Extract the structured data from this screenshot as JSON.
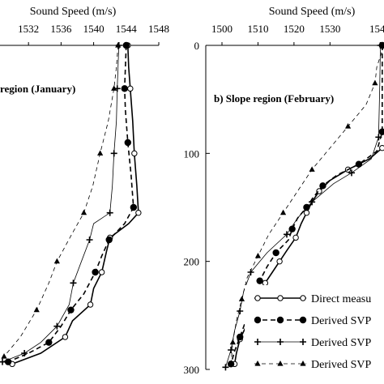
{
  "chart_data": [
    {
      "type": "line",
      "panel_label": "region (January)",
      "xlabel": "Sound Speed (m/s)",
      "x_ticks": [
        1532,
        1536,
        1540,
        1544,
        1548
      ],
      "xlim": [
        1528.5,
        1548
      ],
      "ylim": [
        0,
        300
      ],
      "series": [
        {
          "name": "Direct measurement",
          "style": "solid-open-circle",
          "points": [
            [
              1544.2,
              0
            ],
            [
              1544.3,
              20
            ],
            [
              1544.5,
              40
            ],
            [
              1544.8,
              70
            ],
            [
              1545.0,
              100
            ],
            [
              1545.3,
              130
            ],
            [
              1545.5,
              155
            ],
            [
              1544.3,
              165
            ],
            [
              1542.0,
              178
            ],
            [
              1541.6,
              190
            ],
            [
              1541.0,
              210
            ],
            [
              1540.0,
              225
            ],
            [
              1539.6,
              240
            ],
            [
              1537.4,
              255
            ],
            [
              1536.5,
              270
            ],
            [
              1533.5,
              285
            ],
            [
              1530.0,
              295
            ]
          ]
        },
        {
          "name": "Derived SVP",
          "style": "dash-filled-circle",
          "points": [
            [
              1544.0,
              0
            ],
            [
              1543.9,
              20
            ],
            [
              1543.8,
              40
            ],
            [
              1543.9,
              60
            ],
            [
              1544.2,
              90
            ],
            [
              1544.6,
              120
            ],
            [
              1544.9,
              150
            ],
            [
              1543.8,
              165
            ],
            [
              1541.9,
              180
            ],
            [
              1541.0,
              195
            ],
            [
              1540.2,
              210
            ],
            [
              1538.8,
              230
            ],
            [
              1537.2,
              245
            ],
            [
              1536.0,
              260
            ],
            [
              1534.5,
              275
            ],
            [
              1532.0,
              285
            ],
            [
              1529.5,
              293
            ]
          ]
        },
        {
          "name": "Derived SVP",
          "style": "thin-plus",
          "points": [
            [
              1543.1,
              0
            ],
            [
              1543.0,
              20
            ],
            [
              1542.9,
              40
            ],
            [
              1542.8,
              70
            ],
            [
              1542.5,
              100
            ],
            [
              1542.3,
              130
            ],
            [
              1542.0,
              155
            ],
            [
              1540.0,
              165
            ],
            [
              1539.5,
              180
            ],
            [
              1538.5,
              200
            ],
            [
              1537.5,
              220
            ],
            [
              1537.0,
              240
            ],
            [
              1535.5,
              260
            ],
            [
              1533.5,
              275
            ],
            [
              1531.5,
              285
            ],
            [
              1528.8,
              293
            ]
          ]
        },
        {
          "name": "Derived SVP",
          "style": "dash-triangle",
          "points": [
            [
              1543.0,
              0
            ],
            [
              1542.8,
              20
            ],
            [
              1542.5,
              40
            ],
            [
              1541.8,
              70
            ],
            [
              1540.8,
              100
            ],
            [
              1539.9,
              130
            ],
            [
              1538.8,
              155
            ],
            [
              1537.3,
              175
            ],
            [
              1535.5,
              200
            ],
            [
              1534.5,
              220
            ],
            [
              1533.0,
              245
            ],
            [
              1531.0,
              270
            ],
            [
              1529.0,
              288
            ]
          ]
        }
      ]
    },
    {
      "type": "line",
      "panel_label": "b) Slope region (February)",
      "xlabel": "Sound Speed (m/s)",
      "x_ticks": [
        1500,
        1510,
        1520,
        1530
      ],
      "x_tick_partial": "154",
      "ylabel_ticks": [
        0,
        100,
        200,
        300
      ],
      "xlim": [
        1495.5,
        1545
      ],
      "ylim": [
        0,
        300
      ],
      "series": [
        {
          "name": "Direct measurement",
          "style": "solid-open-circle",
          "points": [
            [
              1544.5,
              95
            ],
            [
              1541.0,
              105
            ],
            [
              1535.0,
              115
            ],
            [
              1530.0,
              125
            ],
            [
              1527.0,
              135
            ],
            [
              1525.0,
              145
            ],
            [
              1523.5,
              155
            ],
            [
              1522.0,
              165
            ],
            [
              1520.5,
              178
            ],
            [
              1518.0,
              190
            ],
            [
              1516.0,
              200
            ],
            [
              1514.0,
              210
            ],
            [
              1512.0,
              220
            ],
            [
              1510.5,
              232
            ],
            [
              1509.0,
              245
            ],
            [
              1507.0,
              258
            ],
            [
              1505.0,
              272
            ],
            [
              1504.0,
              285
            ],
            [
              1503.5,
              295
            ]
          ]
        },
        {
          "name": "Derived SVP",
          "style": "dash-filled-circle",
          "points": [
            [
              1544.5,
              0
            ],
            [
              1544.5,
              30
            ],
            [
              1544.5,
              80
            ],
            [
              1543.0,
              98
            ],
            [
              1538.0,
              110
            ],
            [
              1532.0,
              120
            ],
            [
              1528.0,
              130
            ],
            [
              1525.5,
              140
            ],
            [
              1523.5,
              150
            ],
            [
              1521.0,
              160
            ],
            [
              1519.5,
              170
            ],
            [
              1518.5,
              180
            ],
            [
              1515.0,
              192
            ],
            [
              1512.5,
              205
            ],
            [
              1510.5,
              218
            ],
            [
              1509.0,
              230
            ],
            [
              1507.5,
              243
            ],
            [
              1506.5,
              256
            ],
            [
              1505.0,
              270
            ],
            [
              1503.5,
              283
            ],
            [
              1502.5,
              295
            ]
          ]
        },
        {
          "name": "Derived SVP",
          "style": "thin-plus",
          "points": [
            [
              1544.0,
              0
            ],
            [
              1543.8,
              40
            ],
            [
              1543.5,
              85
            ],
            [
              1541.5,
              105
            ],
            [
              1536.0,
              118
            ],
            [
              1531.0,
              128
            ],
            [
              1525.0,
              145
            ],
            [
              1521.0,
              160
            ],
            [
              1518.0,
              175
            ],
            [
              1512.5,
              192
            ],
            [
              1508.0,
              210
            ],
            [
              1506.0,
              228
            ],
            [
              1505.0,
              246
            ],
            [
              1503.5,
              264
            ],
            [
              1502.5,
              282
            ],
            [
              1501.0,
              298
            ]
          ]
        },
        {
          "name": "Derived SVP",
          "style": "dash-triangle",
          "points": [
            [
              1545.0,
              0
            ],
            [
              1543.0,
              20
            ],
            [
              1542.5,
              35
            ],
            [
              1540.0,
              55
            ],
            [
              1535.0,
              75
            ],
            [
              1530.0,
              95
            ],
            [
              1525.0,
              115
            ],
            [
              1521.0,
              135
            ],
            [
              1517.0,
              155
            ],
            [
              1513.0,
              175
            ],
            [
              1510.0,
              195
            ],
            [
              1507.0,
              215
            ],
            [
              1505.5,
              235
            ],
            [
              1504.0,
              255
            ],
            [
              1503.0,
              275
            ],
            [
              1502.5,
              295
            ]
          ]
        }
      ],
      "legend": [
        {
          "label": "Direct measu",
          "style": "solid-open-circle"
        },
        {
          "label": "Derived SVP",
          "style": "dash-filled-circle"
        },
        {
          "label": "Derived SVP",
          "style": "thin-plus"
        },
        {
          "label": "Derived SVP",
          "style": "dash-triangle"
        }
      ]
    }
  ]
}
